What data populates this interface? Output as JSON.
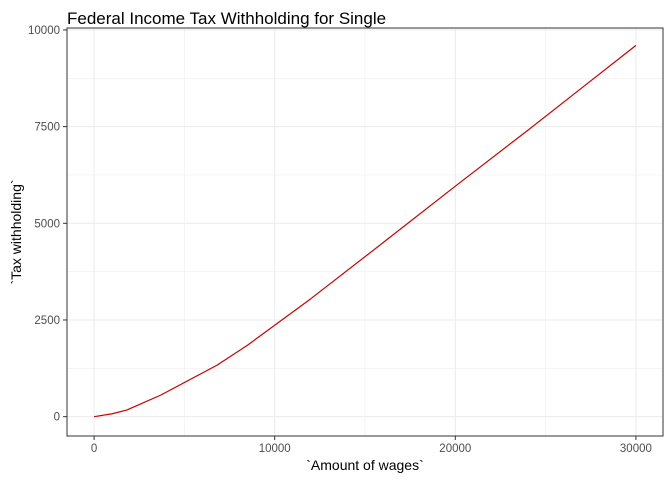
{
  "chart_data": {
    "type": "line",
    "title": "Federal Income Tax Withholding for Single",
    "xlabel": "`Amount of wages`",
    "ylabel": "`Tax withholding`",
    "xlim": [
      -1500,
      31500
    ],
    "ylim": [
      -500,
      10050
    ],
    "x_ticks": [
      0,
      10000,
      20000,
      30000
    ],
    "x_tick_labels": [
      "0",
      "10000",
      "20000",
      "30000"
    ],
    "y_ticks": [
      0,
      2500,
      5000,
      7500,
      10000
    ],
    "y_tick_labels": [
      "0",
      "2500",
      "5000",
      "7500",
      "10000"
    ],
    "grid": true,
    "legend": "none",
    "series": [
      {
        "color": "#cc0000",
        "x": [
          0,
          1000,
          1800,
          3700,
          6800,
          8500,
          12000,
          16000,
          20000,
          24000,
          27000,
          30000
        ],
        "y": [
          0,
          75,
          170,
          560,
          1330,
          1850,
          3050,
          4500,
          5960,
          7400,
          8500,
          9600
        ]
      }
    ]
  }
}
